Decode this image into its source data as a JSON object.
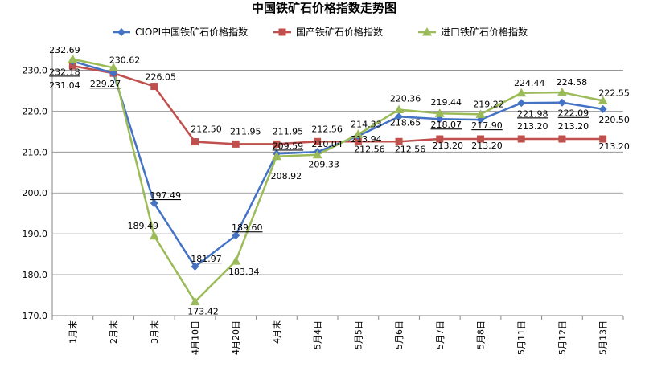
{
  "chart_data": {
    "type": "line",
    "title": "中国铁矿石价格指数走势图",
    "categories": [
      "1月末",
      "2月末",
      "3月末",
      "4月10日",
      "4月20日",
      "4月末",
      "5月4日",
      "5月5日",
      "5月6日",
      "5月7日",
      "5月8日",
      "5月11日",
      "5月12日",
      "5月13日"
    ],
    "ylim": [
      170,
      235
    ],
    "yticks": [
      "170.0",
      "180.0",
      "190.0",
      "200.0",
      "210.0",
      "220.0",
      "230.0"
    ],
    "grid": true,
    "legend_position": "top",
    "series": [
      {
        "name": "CIOPI中国铁矿石价格指数",
        "color": "#4472C4",
        "marker": "diamond",
        "values": [
          232.18,
          229.27,
          197.49,
          181.97,
          189.6,
          209.59,
          210.04,
          213.94,
          218.65,
          218.07,
          217.9,
          221.98,
          222.09,
          220.5
        ],
        "labels": [
          "232.18",
          "229.27",
          "197.49",
          "181.97",
          "189.60",
          "209.59",
          "210.04",
          "213.94",
          "218.65",
          "218.07",
          "217.90",
          "221.98",
          "222.09",
          "220.50"
        ]
      },
      {
        "name": "国产铁矿石价格指数",
        "color": "#C0504D",
        "marker": "square",
        "values": [
          231.04,
          229.27,
          226.05,
          212.5,
          211.95,
          211.95,
          212.56,
          212.56,
          212.56,
          213.2,
          213.2,
          213.2,
          213.2,
          213.2
        ],
        "labels": [
          "231.04",
          "",
          "226.05",
          "212.50",
          "211.95",
          "211.95",
          "212.56",
          "212.56",
          "212.56",
          "213.20",
          "213.20",
          "213.20",
          "213.20",
          "213.20"
        ]
      },
      {
        "name": "进口铁矿石价格指数",
        "color": "#9BBB59",
        "marker": "triangle",
        "values": [
          232.69,
          230.62,
          189.49,
          173.42,
          183.34,
          208.92,
          209.33,
          214.33,
          220.36,
          219.44,
          219.22,
          224.44,
          224.58,
          222.55
        ],
        "labels": [
          "232.69",
          "230.62",
          "189.49",
          "173.42",
          "183.34",
          "208.92",
          "209.33",
          "214.33",
          "220.36",
          "219.44",
          "219.22",
          "224.44",
          "224.58",
          "222.55"
        ]
      }
    ]
  }
}
